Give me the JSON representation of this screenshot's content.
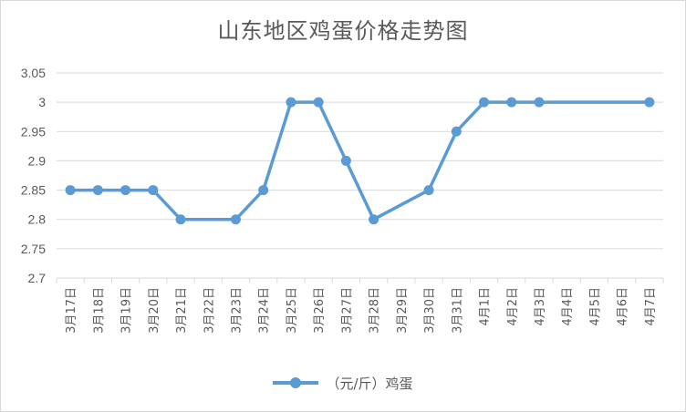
{
  "chart_data": {
    "type": "line",
    "title": "山东地区鸡蛋价格走势图",
    "xlabel": "",
    "ylabel": "",
    "ylim": [
      2.7,
      3.05
    ],
    "yticks": [
      "2.7",
      "2.75",
      "2.8",
      "2.85",
      "2.9",
      "2.95",
      "3",
      "3.05"
    ],
    "grid": true,
    "legend_position": "bottom",
    "categories": [
      "3月17日",
      "3月18日",
      "3月19日",
      "3月20日",
      "3月21日",
      "3月22日",
      "3月23日",
      "3月24日",
      "3月25日",
      "3月26日",
      "3月27日",
      "3月28日",
      "3月29日",
      "3月30日",
      "3月31日",
      "4月1日",
      "4月2日",
      "4月3日",
      "4月4日",
      "4月5日",
      "4月6日",
      "4月7日"
    ],
    "series": [
      {
        "name": "（元/斤）鸡蛋",
        "color": "#5b9bd5",
        "values": [
          2.85,
          2.85,
          2.85,
          2.85,
          2.8,
          null,
          2.8,
          2.85,
          3.0,
          3.0,
          2.9,
          2.8,
          null,
          2.85,
          2.95,
          3.0,
          3.0,
          3.0,
          null,
          null,
          null,
          3.0
        ]
      }
    ]
  }
}
